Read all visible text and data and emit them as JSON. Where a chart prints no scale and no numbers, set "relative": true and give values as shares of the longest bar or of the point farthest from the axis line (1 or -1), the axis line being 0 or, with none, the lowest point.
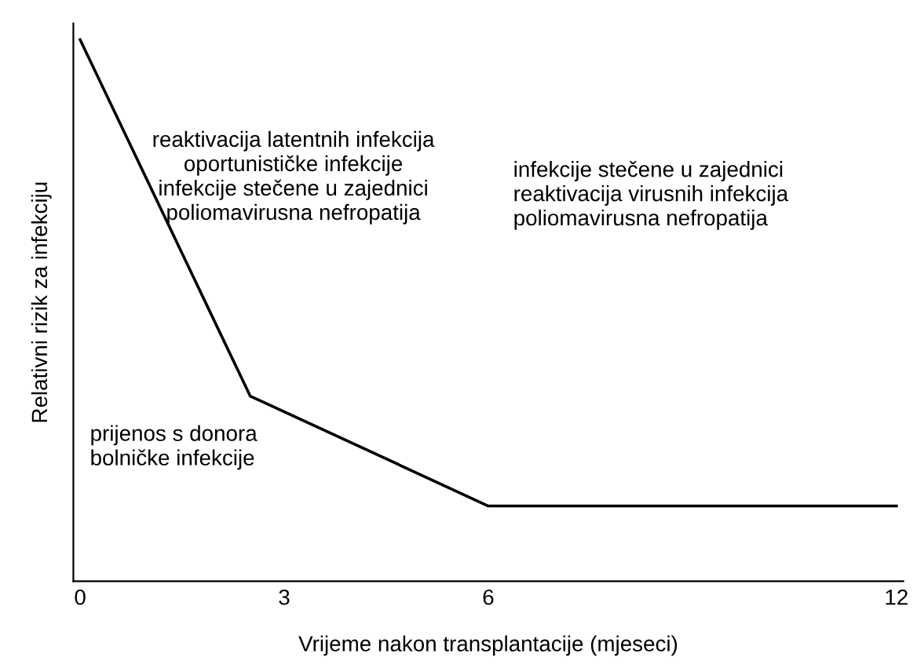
{
  "chart_data": {
    "type": "line",
    "relative": true,
    "xlabel": "Vrijeme nakon transplantacije (mjeseci)",
    "ylabel": "Relativni rizik za infekciju",
    "x": [
      0,
      2.5,
      6,
      12
    ],
    "series": [
      {
        "color": "#000000",
        "values": [
          1,
          0.342,
          0.139,
          0.139
        ]
      }
    ],
    "xlim": [
      -0.1,
      12.1
    ],
    "xticks": [
      0,
      3,
      6,
      12
    ],
    "grid": false,
    "marker": "none",
    "line_style": "solid",
    "tick_labels": "x",
    "annotations": [
      "reaktivacija latentnih infekcija\noportunističke infekcije\ninfekcije stečene u zajednici\npoliomavirusna nefropatija",
      "infekcije stečene u zajednici\nreaktivacija virusnih infekcija\npoliomavirusna nefropatija",
      "prijenos s donora\nbolničke infekcije"
    ]
  }
}
